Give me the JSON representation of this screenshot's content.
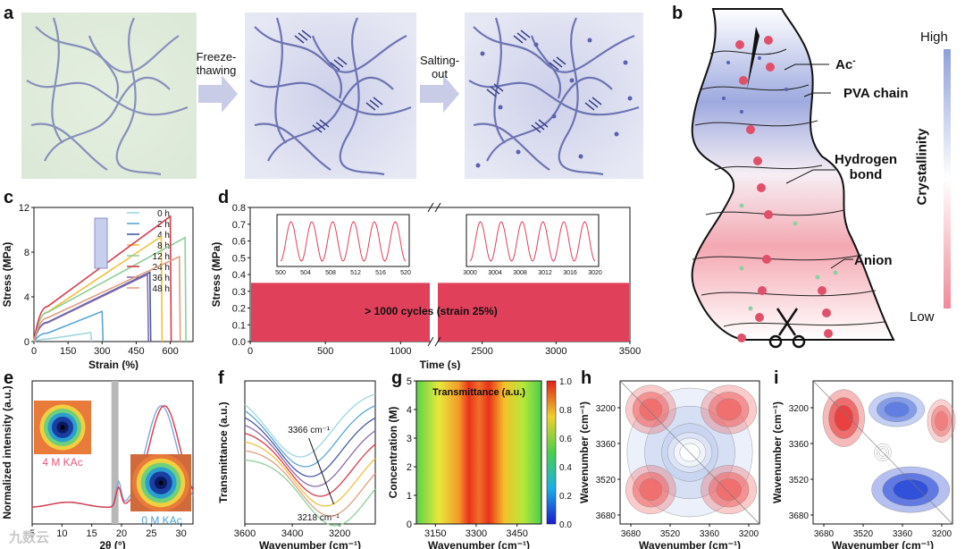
{
  "panel_labels": [
    "a",
    "b",
    "c",
    "d",
    "e",
    "f",
    "g",
    "h",
    "i"
  ],
  "panel_a": {
    "step1_label": "Freeze-\nthawing",
    "step2_label": "Salting-\nout"
  },
  "panel_b": {
    "high_label": "High",
    "low_label": "Low",
    "axis_label": "Crystallinity",
    "ac_label": "Ac",
    "ac_superscript": "-",
    "pva_label": "PVA chain",
    "hbond_label": "Hydrogen\nbond",
    "anion_label": "Anion",
    "gradient_top_color": "#8fa0db",
    "gradient_bottom_color": "#f08a98"
  },
  "chart_data": [
    {
      "id": "c",
      "type": "line",
      "xlabel": "Strain (%)",
      "ylabel": "Stress (MPa)",
      "xlim": [
        0,
        700
      ],
      "ylim": [
        0,
        12
      ],
      "xticks": [
        0,
        150,
        300,
        450,
        600
      ],
      "yticks": [
        0,
        4,
        8,
        12
      ],
      "series": [
        {
          "name": "0 h",
          "color": "#9fd6df",
          "fracture_strain": 250,
          "fracture_stress": 0.8
        },
        {
          "name": "2 h",
          "color": "#5aa6d6",
          "fracture_strain": 300,
          "fracture_stress": 2.7
        },
        {
          "name": "4 h",
          "color": "#4a5aa8",
          "fracture_strain": 510,
          "fracture_stress": 6.2
        },
        {
          "name": "8 h",
          "color": "#f0c040",
          "fracture_strain": 560,
          "fracture_stress": 9.4
        },
        {
          "name": "12 h",
          "color": "#8fcf9a",
          "fracture_strain": 665,
          "fracture_stress": 9.3
        },
        {
          "name": "24 h",
          "color": "#d83a4a",
          "fracture_strain": 600,
          "fracture_stress": 11.2
        },
        {
          "name": "36 h",
          "color": "#8a6aaa",
          "fracture_strain": 500,
          "fracture_stress": 6.0
        },
        {
          "name": "48 h",
          "color": "#e0a080",
          "fracture_strain": 640,
          "fracture_stress": 7.6
        }
      ]
    },
    {
      "id": "d",
      "type": "line",
      "xlabel": "Time (s)",
      "ylabel": "Stress (MPa)",
      "ylim": [
        0,
        0.8
      ],
      "yticks": [
        0.0,
        0.1,
        0.2,
        0.3,
        0.4,
        0.5,
        0.6,
        0.7,
        0.8
      ],
      "xticks_left": [
        0,
        500,
        1000
      ],
      "xticks_right": [
        2500,
        3000,
        3500
      ],
      "annotation": "> 1000 cycles (strain 25%)",
      "inset1_ticks": [
        500,
        504,
        508,
        512,
        516,
        520
      ],
      "inset2_ticks": [
        3000,
        3004,
        3008,
        3012,
        3016,
        3020
      ],
      "color": "#e0405a"
    },
    {
      "id": "e",
      "type": "line",
      "xlabel": "2θ (°)",
      "ylabel": "Normalized intensity (a.u.)",
      "xlim": [
        5,
        32
      ],
      "xticks": [
        5,
        10,
        15,
        20,
        25,
        30
      ],
      "series": [
        {
          "name": "4 M KAc",
          "color": "#d83a4a"
        },
        {
          "name": "0 M KAc",
          "color": "#7fa7d6"
        }
      ],
      "label_4m": "4 M KAc",
      "label_0m": "0 M KAc"
    },
    {
      "id": "f",
      "type": "line",
      "xlabel": "Wavenumber (cm⁻¹)",
      "ylabel": "Transmittance (a.u.)",
      "xlim": [
        3600,
        3050
      ],
      "xticks": [
        3600,
        3400,
        3200
      ],
      "annotation_top": "3366 cm⁻¹",
      "annotation_bottom": "3218 cm⁻¹"
    },
    {
      "id": "g",
      "type": "heatmap",
      "title": "Transmittance (a.u.)",
      "xlabel": "Wavenumber (cm⁻¹)",
      "ylabel": "Concentration (M)",
      "xticks": [
        3150,
        3300,
        3450
      ],
      "yticks": [
        0,
        1,
        2,
        3,
        4,
        5
      ],
      "colorbar_ticks": [
        "0.0",
        "0.2",
        "0.4",
        "0.6",
        "0.8",
        "1.0"
      ]
    },
    {
      "id": "h",
      "type": "heatmap",
      "xlabel": "Wavenumber (cm⁻¹)",
      "ylabel": "Wavenumber (cm⁻¹)",
      "xticks": [
        3680,
        3520,
        3360,
        3200
      ],
      "yticks": [
        3200,
        3360,
        3520,
        3680
      ]
    },
    {
      "id": "i",
      "type": "heatmap",
      "xlabel": "Wavenumber (cm⁻¹)",
      "ylabel": "Wavenumber (cm⁻¹)",
      "xticks": [
        3680,
        3520,
        3360,
        3200
      ],
      "yticks": [
        3200,
        3360,
        3520,
        3680
      ]
    }
  ],
  "watermark": "九数云"
}
